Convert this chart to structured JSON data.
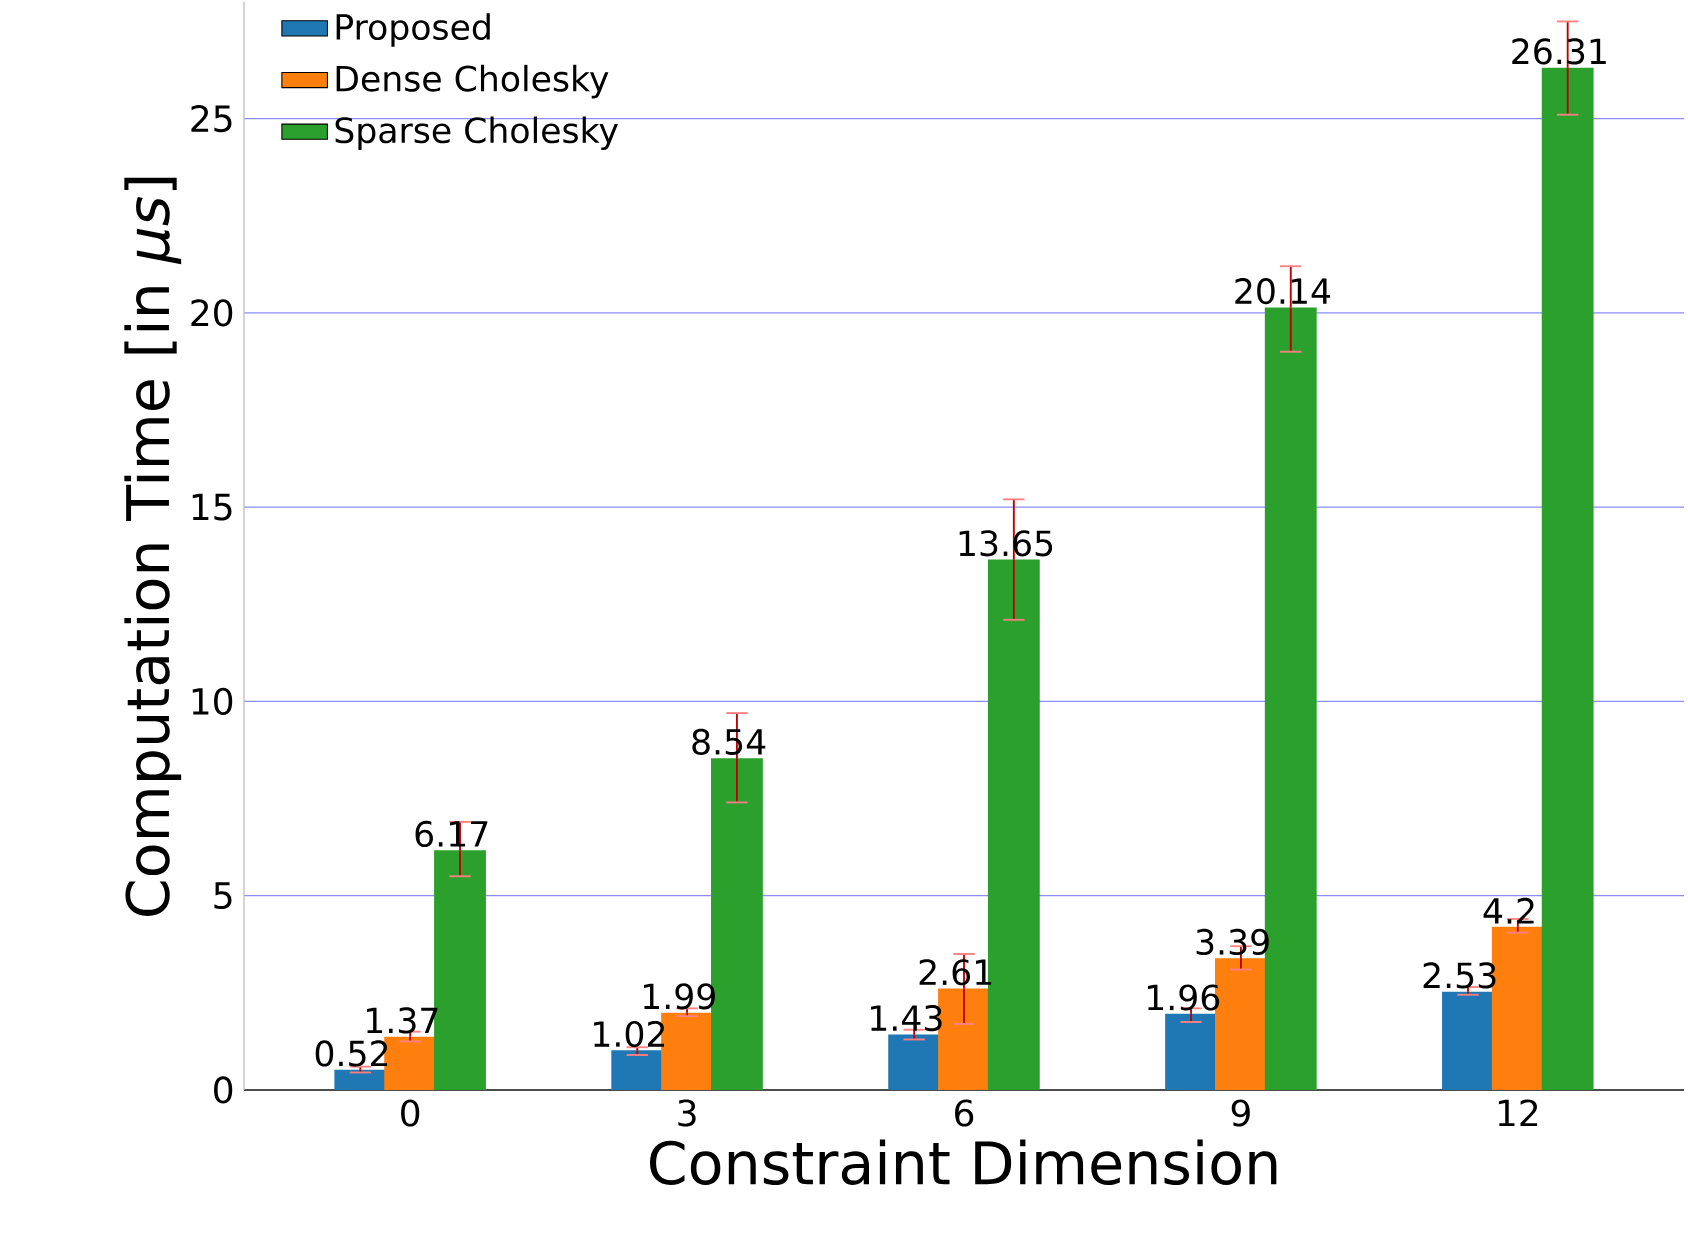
{
  "chart_data": {
    "type": "bar",
    "xlabel": "Constraint Dimension",
    "ylabel": "Computation Time [in *μs*]",
    "categories": [
      "0",
      "3",
      "6",
      "9",
      "12"
    ],
    "series": [
      {
        "name": "Proposed",
        "color": "#1f77b4",
        "values": [
          0.52,
          1.02,
          1.43,
          1.96,
          2.53
        ],
        "errors": [
          [
            0.45,
            0.6
          ],
          [
            0.9,
            1.1
          ],
          [
            1.3,
            1.55
          ],
          [
            1.75,
            2.1
          ],
          [
            2.45,
            2.65
          ]
        ]
      },
      {
        "name": "Dense Cholesky",
        "color": "#ff7f0e",
        "values": [
          1.37,
          1.99,
          2.61,
          3.39,
          4.2
        ],
        "errors": [
          [
            1.25,
            1.5
          ],
          [
            1.9,
            2.1
          ],
          [
            1.7,
            3.5
          ],
          [
            3.1,
            3.7
          ],
          [
            4.05,
            4.4
          ]
        ]
      },
      {
        "name": "Sparse Cholesky",
        "color": "#2ca02c",
        "values": [
          6.17,
          8.54,
          13.65,
          20.14,
          26.31
        ],
        "errors": [
          [
            5.5,
            6.9
          ],
          [
            7.4,
            9.7
          ],
          [
            12.1,
            15.2
          ],
          [
            19.0,
            21.2
          ],
          [
            25.1,
            27.5
          ]
        ]
      }
    ],
    "ylim": [
      0,
      28
    ],
    "yticks": [
      0,
      5,
      10,
      15,
      20,
      25
    ],
    "grid": "y",
    "legend": "top left",
    "data_labels": true
  }
}
